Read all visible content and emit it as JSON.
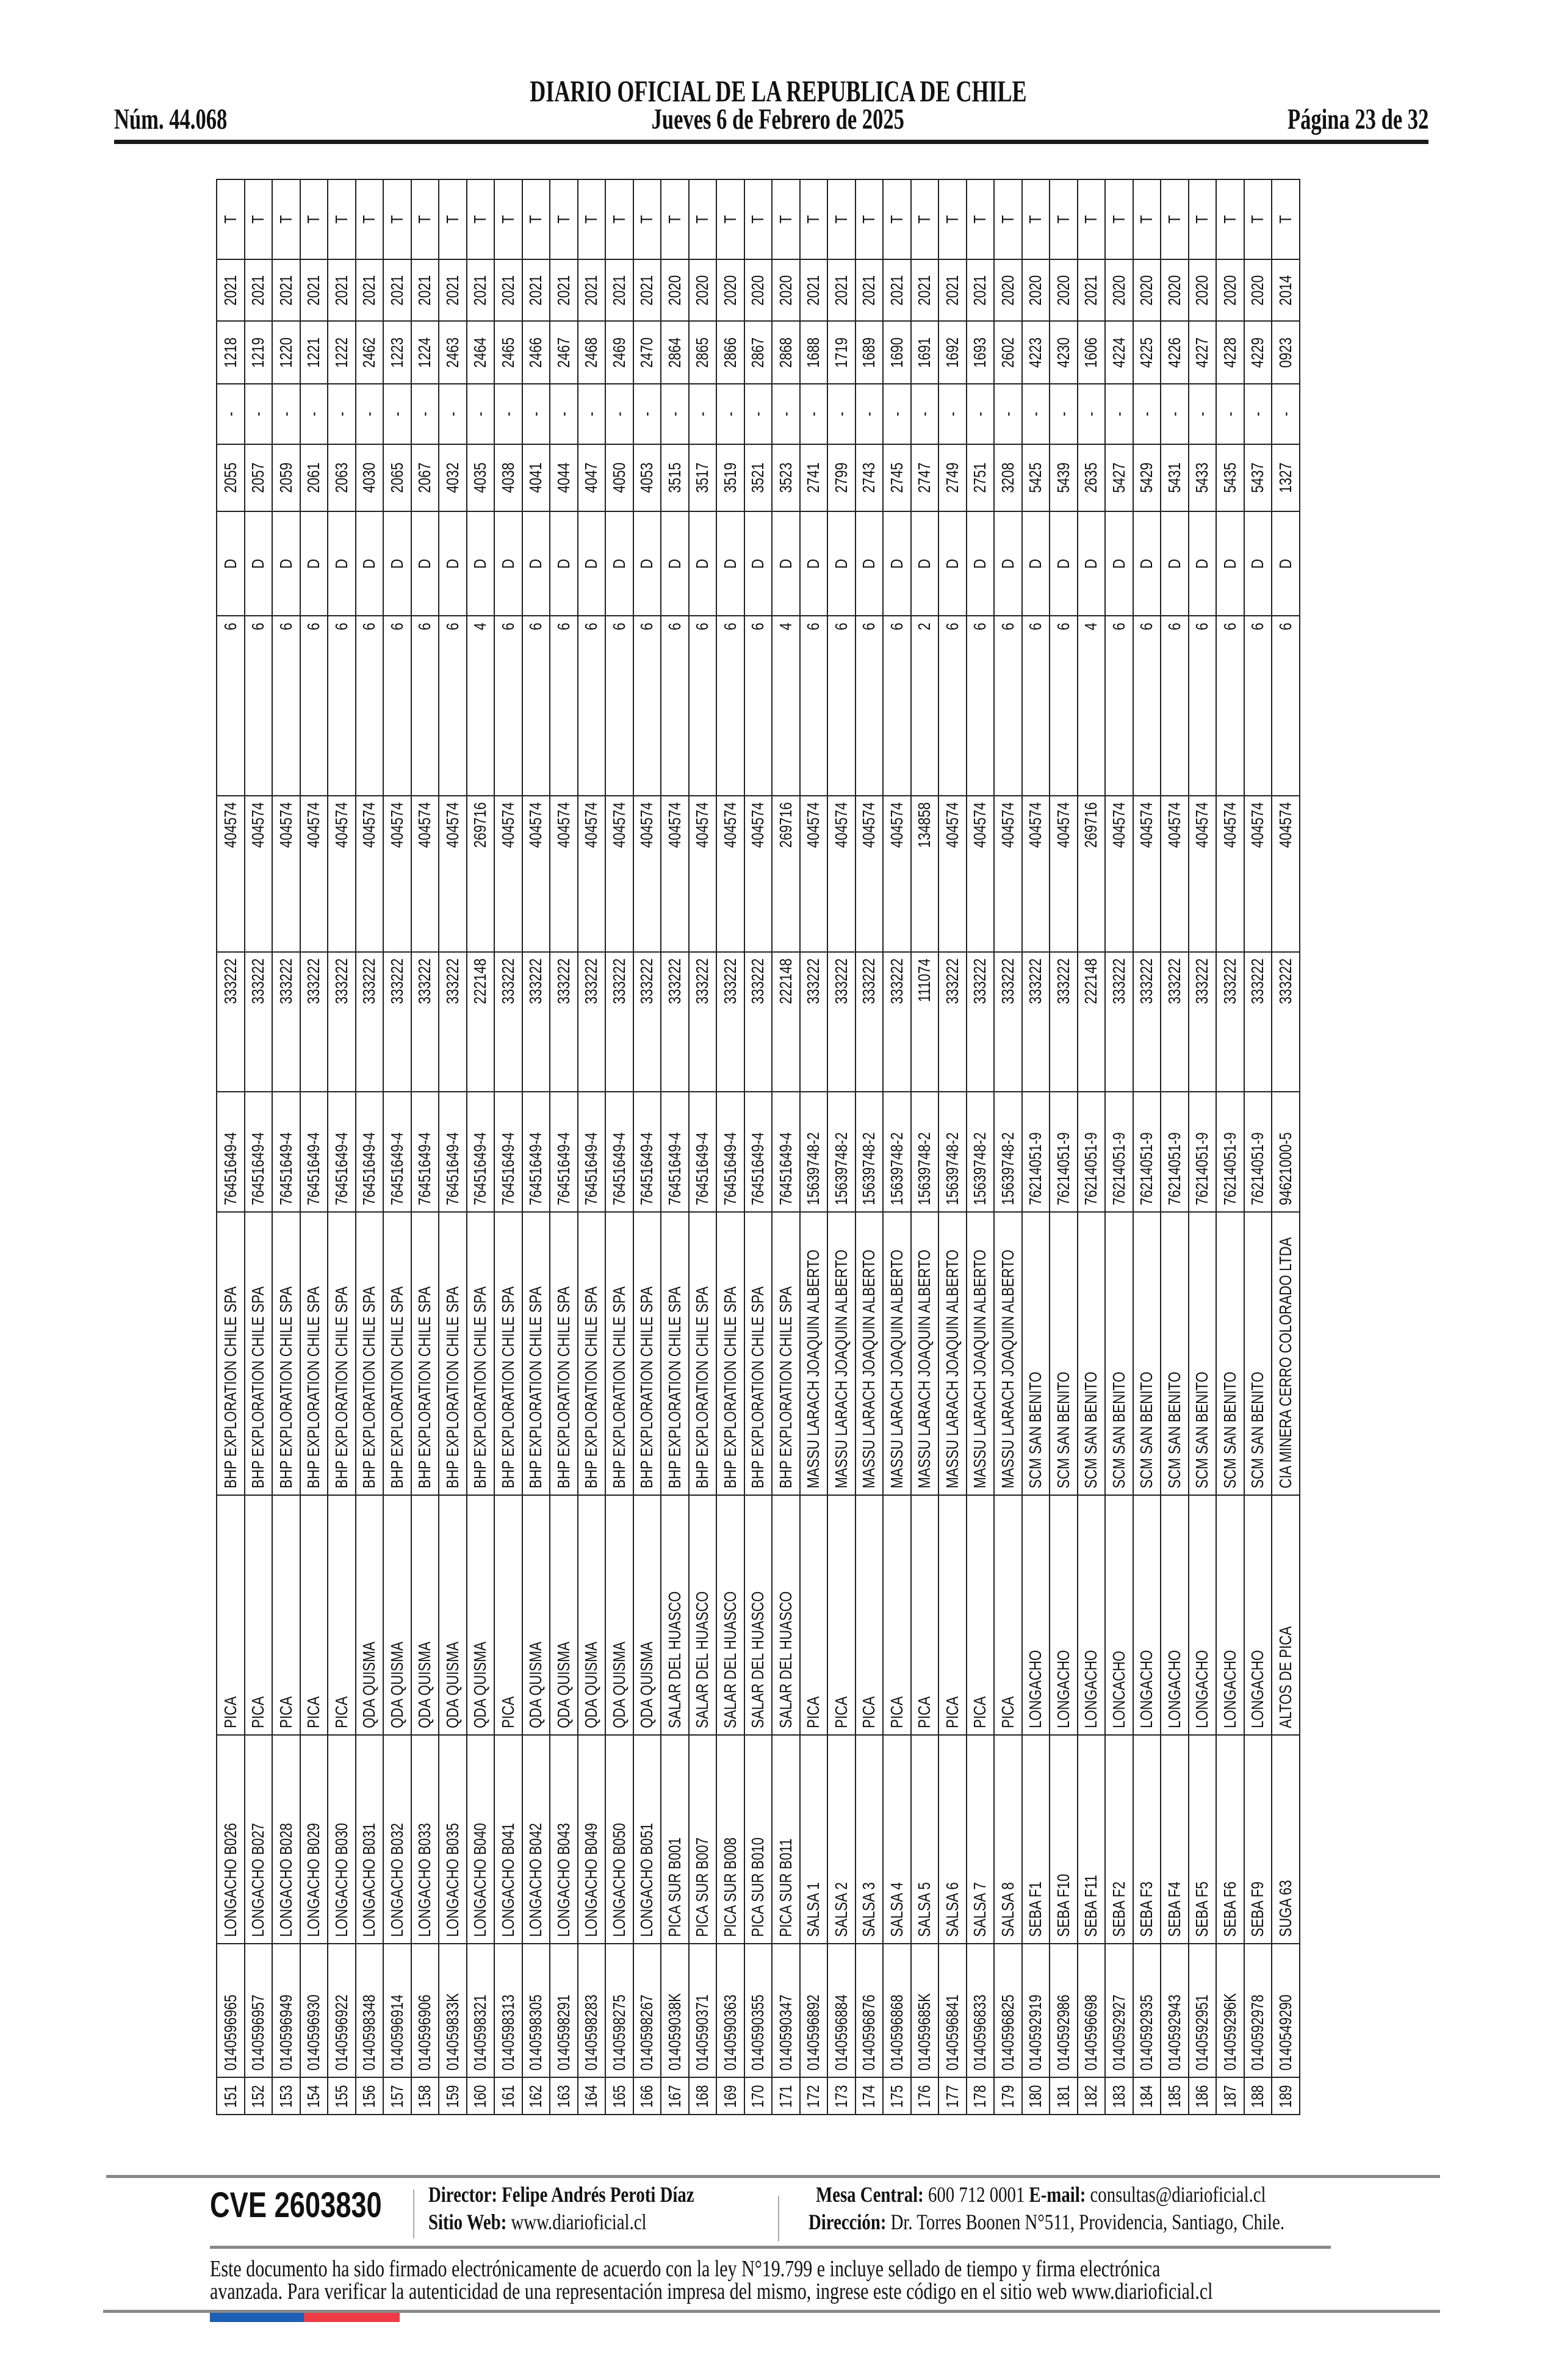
{
  "header": {
    "title": "DIARIO OFICIAL DE LA REPUBLICA DE CHILE",
    "issue_number": "Núm. 44.068",
    "date": "Jueves 6 de Febrero de 2025",
    "page": "Página 23 de 32"
  },
  "table": {
    "rows": [
      [
        "151",
        "0140596965",
        "LONGACHO B026",
        "PICA",
        "BHP EXPLORATION CHILE SPA",
        "76451649-4",
        "333222",
        "404574",
        "6",
        "D",
        "2055",
        "-",
        "1218",
        "2021",
        "T"
      ],
      [
        "152",
        "0140596957",
        "LONGACHO B027",
        "PICA",
        "BHP EXPLORATION CHILE SPA",
        "76451649-4",
        "333222",
        "404574",
        "6",
        "D",
        "2057",
        "-",
        "1219",
        "2021",
        "T"
      ],
      [
        "153",
        "0140596949",
        "LONGACHO B028",
        "PICA",
        "BHP EXPLORATION CHILE SPA",
        "76451649-4",
        "333222",
        "404574",
        "6",
        "D",
        "2059",
        "-",
        "1220",
        "2021",
        "T"
      ],
      [
        "154",
        "0140596930",
        "LONGACHO B029",
        "PICA",
        "BHP EXPLORATION CHILE SPA",
        "76451649-4",
        "333222",
        "404574",
        "6",
        "D",
        "2061",
        "-",
        "1221",
        "2021",
        "T"
      ],
      [
        "155",
        "0140596922",
        "LONGACHO B030",
        "PICA",
        "BHP EXPLORATION CHILE SPA",
        "76451649-4",
        "333222",
        "404574",
        "6",
        "D",
        "2063",
        "-",
        "1222",
        "2021",
        "T"
      ],
      [
        "156",
        "0140598348",
        "LONGACHO B031",
        "QDA QUISMA",
        "BHP EXPLORATION CHILE SPA",
        "76451649-4",
        "333222",
        "404574",
        "6",
        "D",
        "4030",
        "-",
        "2462",
        "2021",
        "T"
      ],
      [
        "157",
        "0140596914",
        "LONGACHO B032",
        "QDA QUISMA",
        "BHP EXPLORATION CHILE SPA",
        "76451649-4",
        "333222",
        "404574",
        "6",
        "D",
        "2065",
        "-",
        "1223",
        "2021",
        "T"
      ],
      [
        "158",
        "0140596906",
        "LONGACHO B033",
        "QDA QUISMA",
        "BHP EXPLORATION CHILE SPA",
        "76451649-4",
        "333222",
        "404574",
        "6",
        "D",
        "2067",
        "-",
        "1224",
        "2021",
        "T"
      ],
      [
        "159",
        "014059833K",
        "LONGACHO B035",
        "QDA QUISMA",
        "BHP EXPLORATION CHILE SPA",
        "76451649-4",
        "333222",
        "404574",
        "6",
        "D",
        "4032",
        "-",
        "2463",
        "2021",
        "T"
      ],
      [
        "160",
        "0140598321",
        "LONGACHO B040",
        "QDA QUISMA",
        "BHP EXPLORATION CHILE SPA",
        "76451649-4",
        "222148",
        "269716",
        "4",
        "D",
        "4035",
        "-",
        "2464",
        "2021",
        "T"
      ],
      [
        "161",
        "0140598313",
        "LONGACHO B041",
        "PICA",
        "BHP EXPLORATION CHILE SPA",
        "76451649-4",
        "333222",
        "404574",
        "6",
        "D",
        "4038",
        "-",
        "2465",
        "2021",
        "T"
      ],
      [
        "162",
        "0140598305",
        "LONGACHO B042",
        "QDA QUISMA",
        "BHP EXPLORATION CHILE SPA",
        "76451649-4",
        "333222",
        "404574",
        "6",
        "D",
        "4041",
        "-",
        "2466",
        "2021",
        "T"
      ],
      [
        "163",
        "0140598291",
        "LONGACHO B043",
        "QDA QUISMA",
        "BHP EXPLORATION CHILE SPA",
        "76451649-4",
        "333222",
        "404574",
        "6",
        "D",
        "4044",
        "-",
        "2467",
        "2021",
        "T"
      ],
      [
        "164",
        "0140598283",
        "LONGACHO B049",
        "QDA QUISMA",
        "BHP EXPLORATION CHILE SPA",
        "76451649-4",
        "333222",
        "404574",
        "6",
        "D",
        "4047",
        "-",
        "2468",
        "2021",
        "T"
      ],
      [
        "165",
        "0140598275",
        "LONGACHO B050",
        "QDA QUISMA",
        "BHP EXPLORATION CHILE SPA",
        "76451649-4",
        "333222",
        "404574",
        "6",
        "D",
        "4050",
        "-",
        "2469",
        "2021",
        "T"
      ],
      [
        "166",
        "0140598267",
        "LONGACHO B051",
        "QDA QUISMA",
        "BHP EXPLORATION CHILE SPA",
        "76451649-4",
        "333222",
        "404574",
        "6",
        "D",
        "4053",
        "-",
        "2470",
        "2021",
        "T"
      ],
      [
        "167",
        "014059038K",
        "PICA SUR B001",
        "SALAR DEL HUASCO",
        "BHP EXPLORATION CHILE SPA",
        "76451649-4",
        "333222",
        "404574",
        "6",
        "D",
        "3515",
        "-",
        "2864",
        "2020",
        "T"
      ],
      [
        "168",
        "0140590371",
        "PICA SUR B007",
        "SALAR DEL HUASCO",
        "BHP EXPLORATION CHILE SPA",
        "76451649-4",
        "333222",
        "404574",
        "6",
        "D",
        "3517",
        "-",
        "2865",
        "2020",
        "T"
      ],
      [
        "169",
        "0140590363",
        "PICA SUR B008",
        "SALAR DEL HUASCO",
        "BHP EXPLORATION CHILE SPA",
        "76451649-4",
        "333222",
        "404574",
        "6",
        "D",
        "3519",
        "-",
        "2866",
        "2020",
        "T"
      ],
      [
        "170",
        "0140590355",
        "PICA SUR B010",
        "SALAR DEL HUASCO",
        "BHP EXPLORATION CHILE SPA",
        "76451649-4",
        "333222",
        "404574",
        "6",
        "D",
        "3521",
        "-",
        "2867",
        "2020",
        "T"
      ],
      [
        "171",
        "0140590347",
        "PICA SUR B011",
        "SALAR DEL HUASCO",
        "BHP EXPLORATION CHILE SPA",
        "76451649-4",
        "222148",
        "269716",
        "4",
        "D",
        "3523",
        "-",
        "2868",
        "2020",
        "T"
      ],
      [
        "172",
        "0140596892",
        "SALSA 1",
        "PICA",
        "MASSU LARACH JOAQUIN ALBERTO",
        "15639748-2",
        "333222",
        "404574",
        "6",
        "D",
        "2741",
        "-",
        "1688",
        "2021",
        "T"
      ],
      [
        "173",
        "0140596884",
        "SALSA 2",
        "PICA",
        "MASSU LARACH JOAQUIN ALBERTO",
        "15639748-2",
        "333222",
        "404574",
        "6",
        "D",
        "2799",
        "-",
        "1719",
        "2021",
        "T"
      ],
      [
        "174",
        "0140596876",
        "SALSA 3",
        "PICA",
        "MASSU LARACH JOAQUIN ALBERTO",
        "15639748-2",
        "333222",
        "404574",
        "6",
        "D",
        "2743",
        "-",
        "1689",
        "2021",
        "T"
      ],
      [
        "175",
        "0140596868",
        "SALSA 4",
        "PICA",
        "MASSU LARACH JOAQUIN ALBERTO",
        "15639748-2",
        "333222",
        "404574",
        "6",
        "D",
        "2745",
        "-",
        "1690",
        "2021",
        "T"
      ],
      [
        "176",
        "014059685K",
        "SALSA 5",
        "PICA",
        "MASSU LARACH JOAQUIN ALBERTO",
        "15639748-2",
        "111074",
        "134858",
        "2",
        "D",
        "2747",
        "-",
        "1691",
        "2021",
        "T"
      ],
      [
        "177",
        "0140596841",
        "SALSA 6",
        "PICA",
        "MASSU LARACH JOAQUIN ALBERTO",
        "15639748-2",
        "333222",
        "404574",
        "6",
        "D",
        "2749",
        "-",
        "1692",
        "2021",
        "T"
      ],
      [
        "178",
        "0140596833",
        "SALSA 7",
        "PICA",
        "MASSU LARACH JOAQUIN ALBERTO",
        "15639748-2",
        "333222",
        "404574",
        "6",
        "D",
        "2751",
        "-",
        "1693",
        "2021",
        "T"
      ],
      [
        "179",
        "0140596825",
        "SALSA 8",
        "PICA",
        "MASSU LARACH JOAQUIN ALBERTO",
        "15639748-2",
        "333222",
        "404574",
        "6",
        "D",
        "3208",
        "-",
        "2602",
        "2020",
        "T"
      ],
      [
        "180",
        "0140592919",
        "SEBA F1",
        "LONGACHO",
        "SCM SAN BENITO",
        "76214051-9",
        "333222",
        "404574",
        "6",
        "D",
        "5425",
        "-",
        "4223",
        "2020",
        "T"
      ],
      [
        "181",
        "0140592986",
        "SEBA F10",
        "LONGACHO",
        "SCM SAN BENITO",
        "76214051-9",
        "333222",
        "404574",
        "6",
        "D",
        "5439",
        "-",
        "4230",
        "2020",
        "T"
      ],
      [
        "182",
        "0140596698",
        "SEBA F11",
        "LONGACHO",
        "SCM SAN BENITO",
        "76214051-9",
        "222148",
        "269716",
        "4",
        "D",
        "2635",
        "-",
        "1606",
        "2021",
        "T"
      ],
      [
        "183",
        "0140592927",
        "SEBA F2",
        "LONCACHO",
        "SCM SAN BENITO",
        "76214051-9",
        "333222",
        "404574",
        "6",
        "D",
        "5427",
        "-",
        "4224",
        "2020",
        "T"
      ],
      [
        "184",
        "0140592935",
        "SEBA F3",
        "LONGACHO",
        "SCM SAN BENITO",
        "76214051-9",
        "333222",
        "404574",
        "6",
        "D",
        "5429",
        "-",
        "4225",
        "2020",
        "T"
      ],
      [
        "185",
        "0140592943",
        "SEBA F4",
        "LONGACHO",
        "SCM SAN BENITO",
        "76214051-9",
        "333222",
        "404574",
        "6",
        "D",
        "5431",
        "-",
        "4226",
        "2020",
        "T"
      ],
      [
        "186",
        "0140592951",
        "SEBA F5",
        "LONGACHO",
        "SCM SAN BENITO",
        "76214051-9",
        "333222",
        "404574",
        "6",
        "D",
        "5433",
        "-",
        "4227",
        "2020",
        "T"
      ],
      [
        "187",
        "014059296K",
        "SEBA F6",
        "LONGACHO",
        "SCM SAN BENITO",
        "76214051-9",
        "333222",
        "404574",
        "6",
        "D",
        "5435",
        "-",
        "4228",
        "2020",
        "T"
      ],
      [
        "188",
        "0140592978",
        "SEBA F9",
        "LONGACHO",
        "SCM SAN BENITO",
        "76214051-9",
        "333222",
        "404574",
        "6",
        "D",
        "5437",
        "-",
        "4229",
        "2020",
        "T"
      ],
      [
        "189",
        "0140549290",
        "SUGA 63",
        "ALTOS DE PICA",
        "CIA MINERA CERRO COLORADO LTDA",
        "94621000-5",
        "333222",
        "404574",
        "6",
        "D",
        "1327",
        "-",
        "0923",
        "2014",
        "T"
      ]
    ]
  },
  "footer": {
    "cve": "CVE 2603830",
    "director_label": "Director:",
    "director_name": "Felipe Andrés Peroti Díaz",
    "website_label": "Sitio Web:",
    "website": "www.diarioficial.cl",
    "phone_label": "Mesa Central:",
    "phone": "600 712 0001",
    "email_label": "E-mail:",
    "email": "consultas@diarioficial.cl",
    "address_label": "Dirección:",
    "address": "Dr. Torres Boonen N°511, Providencia, Santiago, Chile.",
    "legal_line1": "Este documento ha sido firmado electrónicamente de acuerdo con la ley N°19.799 e incluye sellado de tiempo y firma electrónica",
    "legal_line2": "avanzada. Para verificar la autenticidad de una representación impresa del mismo, ingrese este código en el sitio web www.diarioficial.cl"
  },
  "colors": {
    "flag_blue": "#1c5fb4",
    "flag_red": "#ef3b45",
    "rule_gray": "#888888"
  }
}
